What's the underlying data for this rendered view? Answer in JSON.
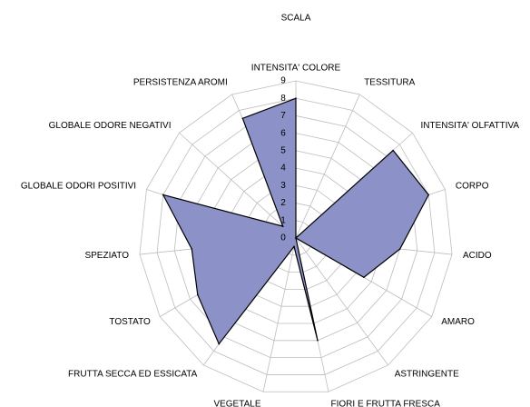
{
  "chart_data": {
    "type": "radar",
    "title": "SCALA",
    "categories": [
      "INTENSITA' COLORE",
      "TESSITURA",
      "INTENSITA' OLFATTIVA",
      "CORPO",
      "ACIDO",
      "AMARO",
      "ASTRINGENTE",
      "FIORI E FRUTTA FRESCA",
      "VEGETALE",
      "FRUTTA SECCA ED ESSICATA",
      "TOSTATO",
      "SPEZIATO",
      "GLOBALE ODORI POSITIVI",
      "GLOBALE ODORE NEGATIVI",
      "PERSISTENZA AROMI"
    ],
    "series": [
      {
        "values": [
          8,
          0,
          7.5,
          8,
          6,
          4.5,
          0,
          6,
          0.5,
          7.5,
          6.5,
          6,
          8,
          1,
          7.5
        ]
      }
    ],
    "rlim": [
      0,
      9
    ],
    "ticks": [
      "0",
      "1",
      "2",
      "3",
      "4",
      "5",
      "6",
      "7",
      "8",
      "9"
    ],
    "grid": true,
    "legend": "none",
    "colors": {
      "fill": "#8c92c8",
      "stroke": "#000000",
      "grid": "#bdbdbd"
    }
  }
}
